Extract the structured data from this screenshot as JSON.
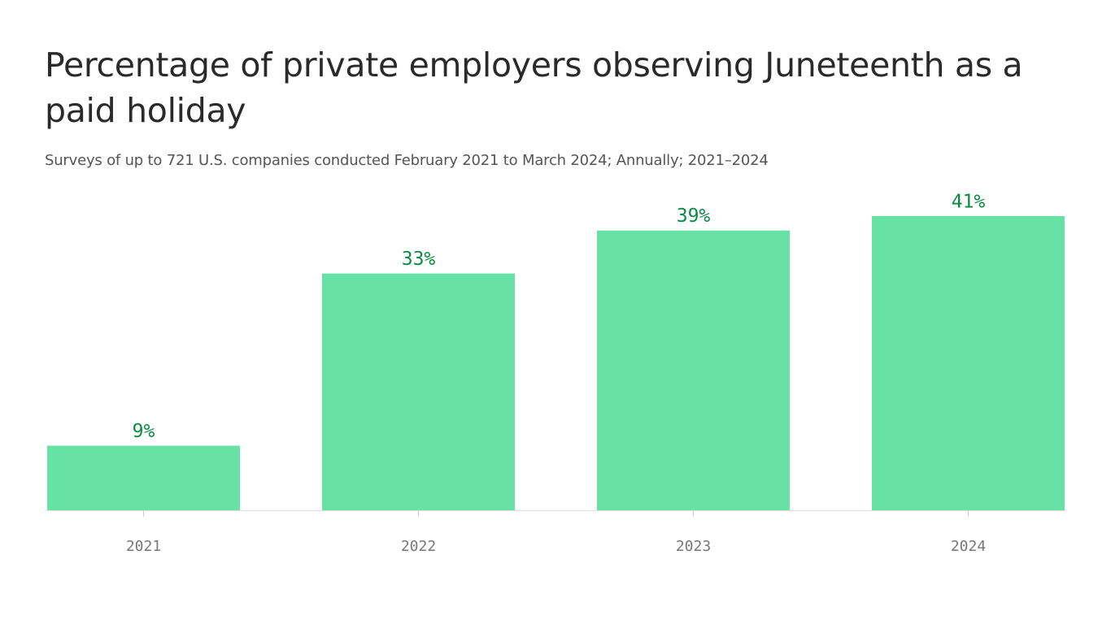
{
  "chart_data": {
    "type": "bar",
    "title": "Percentage of private employers observing Juneteenth as a paid holiday",
    "subtitle": "Surveys of up to 721 U.S. companies conducted February 2021 to March 2024; Annually; 2021–2024",
    "categories": [
      "2021",
      "2022",
      "2023",
      "2024"
    ],
    "values": [
      9,
      33,
      39,
      41
    ],
    "value_labels": [
      "9%",
      "33%",
      "39%",
      "41%"
    ],
    "color": "#67e2a4"
  }
}
